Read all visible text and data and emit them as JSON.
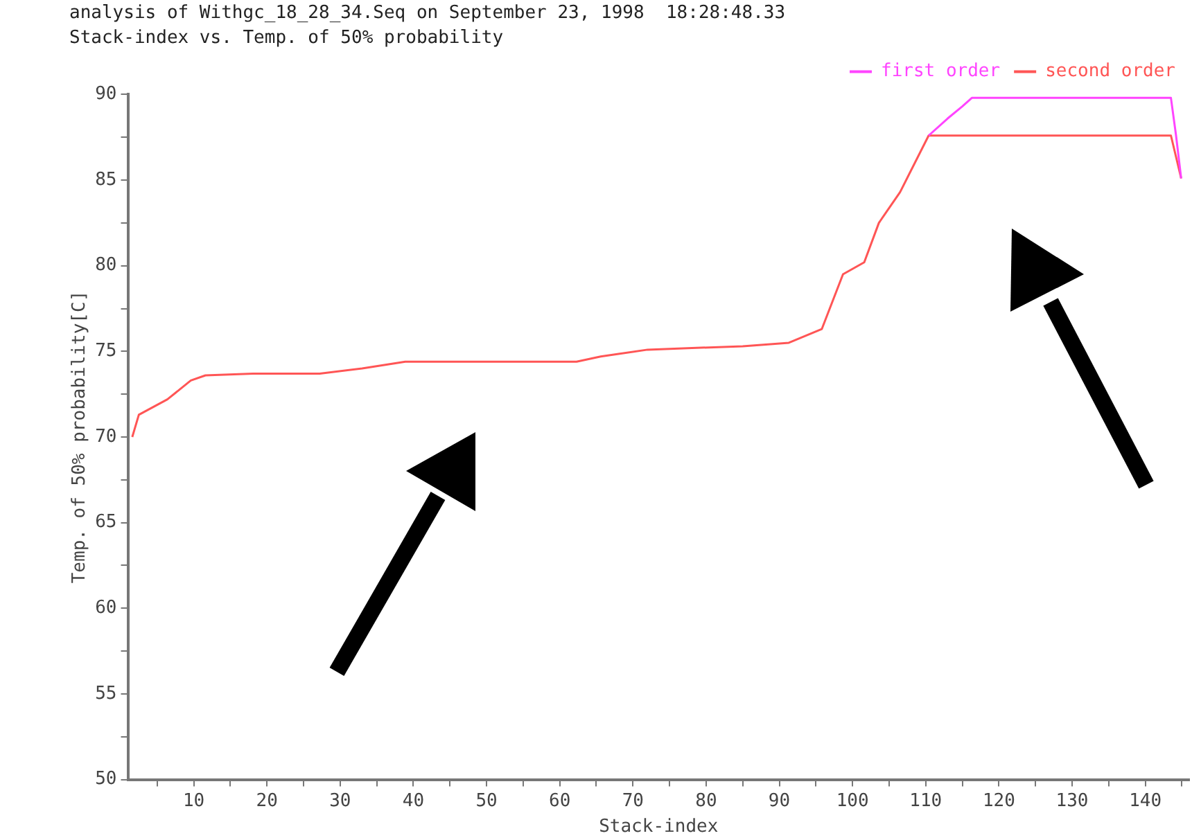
{
  "chart_data": {
    "type": "line",
    "title": "analysis of Withgc_18_28_34.Seq on September 23, 1998  18:28:48.33",
    "subtitle": "Stack-index vs. Temp. of 50% probability",
    "xlabel": "Stack-index",
    "ylabel": "Temp. of 50% probability[C]",
    "xlim": [
      1,
      146
    ],
    "ylim": [
      50,
      90
    ],
    "xticks": [
      {
        "value": 5,
        "label": null
      },
      10,
      {
        "value": 15,
        "label": null
      },
      20,
      {
        "value": 25,
        "label": null
      },
      30,
      {
        "value": 35,
        "label": null
      },
      40,
      {
        "value": 45,
        "label": null
      },
      50,
      {
        "value": 55,
        "label": null
      },
      60,
      {
        "value": 65,
        "label": null
      },
      70,
      {
        "value": 75,
        "label": null
      },
      80,
      {
        "value": 85,
        "label": null
      },
      90,
      {
        "value": 95,
        "label": null
      },
      100,
      {
        "value": 105,
        "label": null
      },
      110,
      {
        "value": 115,
        "label": null
      },
      120,
      {
        "value": 125,
        "label": null
      },
      130,
      {
        "value": 135,
        "label": null
      },
      140,
      {
        "value": 145,
        "label": null
      }
    ],
    "yticks": [
      50,
      {
        "value": 52.5,
        "label": null
      },
      55,
      {
        "value": 57.5,
        "label": null
      },
      60,
      {
        "value": 62.5,
        "label": null
      },
      65,
      {
        "value": 67.5,
        "label": null
      },
      70,
      {
        "value": 72.5,
        "label": null
      },
      75,
      {
        "value": 77.5,
        "label": null
      },
      80,
      {
        "value": 82.5,
        "label": null
      },
      85,
      {
        "value": 87.5,
        "label": null
      },
      90
    ],
    "grid": false,
    "legend": "top right",
    "marker": "none",
    "line_style": "solid",
    "series": [
      {
        "name": "first order",
        "color": "#ff44ff",
        "x": [
          110.4,
          113,
          115,
          116.3,
          143.5,
          144.2,
          144.9
        ],
        "values": [
          87.6,
          88.6,
          89.3,
          89.8,
          89.8,
          87.6,
          85.1
        ]
      },
      {
        "name": "second order",
        "color": "#ff5555",
        "x": [
          1.6,
          2.5,
          6.4,
          9.6,
          11.6,
          18.1,
          27.2,
          33,
          38.9,
          62.3,
          65.6,
          72,
          85,
          91.3,
          95.8,
          98.7,
          101.6,
          103.6,
          106.5,
          110.4,
          143.5,
          144.9
        ],
        "values": [
          70,
          71.3,
          72.2,
          73.3,
          73.6,
          73.7,
          73.7,
          74,
          74.4,
          74.4,
          74.7,
          75.1,
          75.3,
          75.5,
          76.3,
          79.5,
          80.2,
          82.5,
          84.3,
          87.6,
          87.6,
          85.1
        ]
      }
    ]
  }
}
